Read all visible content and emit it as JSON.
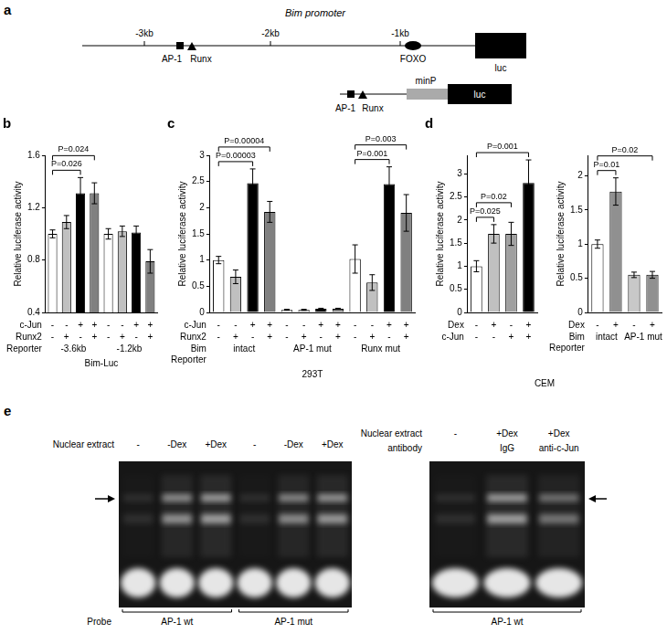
{
  "chart_data": [
    {
      "panel": "b",
      "type": "bar",
      "y_label": "Relative luciferase activity",
      "categories": [
        null,
        null,
        null,
        null,
        null,
        null,
        null,
        null
      ],
      "values": [
        1.0,
        1.09,
        1.31,
        1.31,
        1.0,
        1.02,
        1.01,
        0.79
      ],
      "errors": [
        0.03,
        0.05,
        0.12,
        0.08,
        0.04,
        0.04,
        0.05,
        0.09
      ],
      "colors": [
        "#ffffff",
        "#c0c0c0",
        "#000000",
        "#808080",
        "#ffffff",
        "#c0c0c0",
        "#000000",
        "#808080"
      ],
      "ylim": [
        0.4,
        1.6
      ],
      "yticks": [
        0.4,
        0.8,
        1.2,
        1.6
      ],
      "grid": false,
      "condition_rows": [
        {
          "label": "c-Jun",
          "values": [
            "-",
            "-",
            "+",
            "+",
            "-",
            "-",
            "+",
            "+"
          ]
        },
        {
          "label": "Runx2",
          "values": [
            "-",
            "+",
            "-",
            "+",
            "-",
            "+",
            "-",
            "+"
          ]
        }
      ],
      "group_label": [
        "Reporter"
      ],
      "groups": [
        "-3.6kb",
        "-1.2kb"
      ],
      "footer": "Bim-Luc",
      "comparisons": [
        {
          "from": 0,
          "to": 2,
          "label": "P=0.026"
        },
        {
          "from": 0,
          "to": 3,
          "label": "P=0.024"
        }
      ]
    },
    {
      "panel": "c",
      "type": "bar",
      "y_label": "Relative luciferase activity",
      "categories": [
        null,
        null,
        null,
        null,
        null,
        null,
        null,
        null,
        null,
        null,
        null,
        null
      ],
      "values": [
        1.0,
        0.68,
        2.47,
        1.92,
        0.05,
        0.05,
        0.07,
        0.07,
        1.02,
        0.57,
        2.45,
        1.9
      ],
      "errors": [
        0.07,
        0.13,
        0.27,
        0.2,
        0.01,
        0.01,
        0.01,
        0.01,
        0.27,
        0.15,
        0.33,
        0.35
      ],
      "colors": [
        "#ffffff",
        "#c0c0c0",
        "#000000",
        "#808080",
        "#ffffff",
        "#c0c0c0",
        "#000000",
        "#808080",
        "#ffffff",
        "#c0c0c0",
        "#000000",
        "#808080"
      ],
      "ylim": [
        0,
        3
      ],
      "yticks": [
        0,
        0.5,
        1,
        1.5,
        2,
        2.5,
        3
      ],
      "grid": false,
      "condition_rows": [
        {
          "label": "c-Jun",
          "values": [
            "-",
            "-",
            "+",
            "+",
            "-",
            "-",
            "+",
            "+",
            "-",
            "-",
            "+",
            "+"
          ]
        },
        {
          "label": "Runx2",
          "values": [
            "-",
            "+",
            "-",
            "+",
            "-",
            "+",
            "-",
            "+",
            "-",
            "+",
            "-",
            "+"
          ]
        }
      ],
      "group_label": [
        "Bim",
        "Reporter"
      ],
      "groups": [
        "intact",
        "AP-1 mut",
        "Runx mut"
      ],
      "footer": "293T",
      "comparisons": [
        {
          "from": 0,
          "to": 2,
          "label": "P=0.00003"
        },
        {
          "from": 0,
          "to": 3,
          "label": "P=0.00004"
        },
        {
          "from": 8,
          "to": 10,
          "label": "P=0.001"
        },
        {
          "from": 8,
          "to": 11,
          "label": "P=0.003"
        }
      ]
    },
    {
      "panel": "d",
      "type": "bar",
      "y_label": "Relative luciferase activity",
      "categories": [
        null,
        null,
        null,
        null
      ],
      "values": [
        1.0,
        1.7,
        1.7,
        2.8
      ],
      "errors": [
        0.12,
        0.2,
        0.25,
        0.5
      ],
      "colors": [
        "#ffffff",
        "#c0c0c0",
        "#a0a0a0",
        "#000000"
      ],
      "ylim": [
        0,
        3.4
      ],
      "yticks": [
        0,
        0.5,
        1,
        1.5,
        2,
        2.5,
        3
      ],
      "grid": false,
      "condition_rows": [
        {
          "label": "Dex",
          "values": [
            "-",
            "+",
            "-",
            "+"
          ]
        },
        {
          "label": "c-Jun",
          "values": [
            "-",
            "-",
            "+",
            "+"
          ]
        }
      ],
      "shared_footer": "CEM",
      "comparisons": [
        {
          "from": 0,
          "to": 1,
          "label": "P=0.025"
        },
        {
          "from": 0,
          "to": 2,
          "label": "P=0.02"
        },
        {
          "from": 0,
          "to": 3,
          "label": "P=0.001"
        }
      ]
    },
    {
      "type": "bar",
      "y_label": "Relative luciferase activity",
      "categories": [
        null,
        null,
        null,
        null
      ],
      "values": [
        1.0,
        1.77,
        0.55,
        0.55
      ],
      "errors": [
        0.06,
        0.2,
        0.04,
        0.05
      ],
      "colors": [
        "#ffffff",
        "#909090",
        "#c8c8c8",
        "#909090"
      ],
      "ylim": [
        0,
        2.3
      ],
      "yticks": [
        0,
        0.5,
        1,
        1.5,
        2
      ],
      "grid": false,
      "condition_rows": [
        {
          "label": "Dex",
          "values": [
            "-",
            "+",
            "-",
            "+"
          ]
        }
      ],
      "group_label": [
        "Bim",
        "Reporter"
      ],
      "groups": [
        "intact",
        "AP-1 mut"
      ],
      "comparisons": [
        {
          "from": 0,
          "to": 1,
          "label": "P=0.01"
        },
        {
          "from": 0,
          "to": 3,
          "label": "P=0.02"
        }
      ]
    }
  ],
  "diagram": {
    "panel": "a",
    "title": "Bim promoter",
    "scale_marks": [
      "-3kb",
      "-2kb",
      "-1kb"
    ],
    "promoter": [
      "AP-1",
      "Runx",
      "FOXO",
      "luc"
    ],
    "construct": [
      "AP-1",
      "Runx",
      "minP",
      "luc"
    ]
  },
  "gel": {
    "panel": "e",
    "left": {
      "rows": [
        {
          "label": "Nuclear extract",
          "lanes": [
            "-",
            "-Dex",
            "+Dex",
            "-",
            "-Dex",
            "+Dex"
          ]
        }
      ],
      "probe": {
        "label": "Probe",
        "groups": [
          "AP-1 wt",
          "AP-1 mut"
        ]
      }
    },
    "right": {
      "rows": [
        {
          "label": "Nuclear extract",
          "lanes": [
            "-",
            "+Dex",
            "+Dex"
          ]
        },
        {
          "label": "antibody",
          "lanes": [
            null,
            "IgG",
            "anti-c-Jun"
          ]
        }
      ],
      "probe": {
        "groups": [
          "AP-1 wt"
        ]
      }
    }
  }
}
